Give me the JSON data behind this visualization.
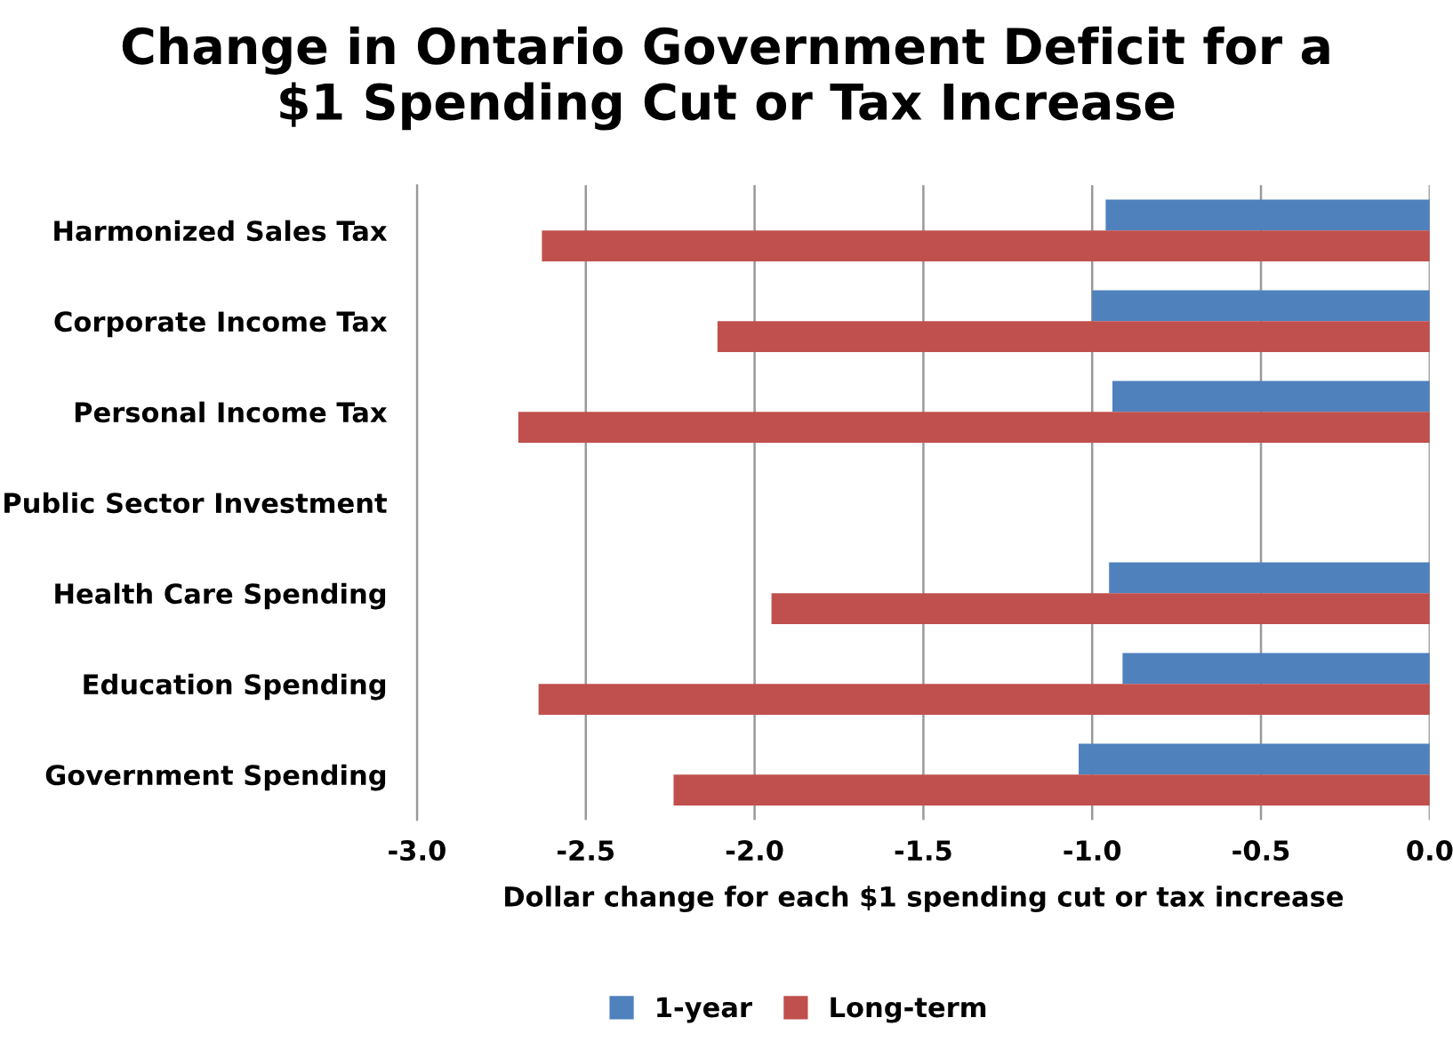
{
  "chart_data": {
    "type": "bar",
    "orientation": "horizontal",
    "title": "Change in Ontario Government Deficit for a\n$1 Spending Cut or Tax Increase",
    "xlabel": "Dollar change for each $1 spending cut or tax increase",
    "categories": [
      "Harmonized Sales Tax",
      "Corporate Income Tax",
      "Personal Income Tax",
      "Public Sector Investment",
      "Health Care Spending",
      "Education Spending",
      "Government Spending"
    ],
    "series": [
      {
        "name": "1-year",
        "color": "#4f81bd",
        "values": [
          -0.96,
          -1.0,
          -0.94,
          null,
          -0.95,
          -0.91,
          -1.04
        ]
      },
      {
        "name": "Long-term",
        "color": "#c0504d",
        "values": [
          -2.63,
          -2.11,
          -2.7,
          null,
          -1.95,
          -2.64,
          -2.24
        ]
      }
    ],
    "xlim": [
      -3.0,
      0.0
    ],
    "xticks": [
      {
        "value": -3.0,
        "label": "-3.0"
      },
      {
        "value": -2.5,
        "label": "-2.5"
      },
      {
        "value": -2.0,
        "label": "-2.0"
      },
      {
        "value": -1.5,
        "label": "-1.5"
      },
      {
        "value": -1.0,
        "label": "-1.0"
      },
      {
        "value": -0.5,
        "label": "-0.5"
      },
      {
        "value": 0.0,
        "label": "0.0"
      }
    ],
    "grid": "x",
    "legend": "bottom"
  }
}
